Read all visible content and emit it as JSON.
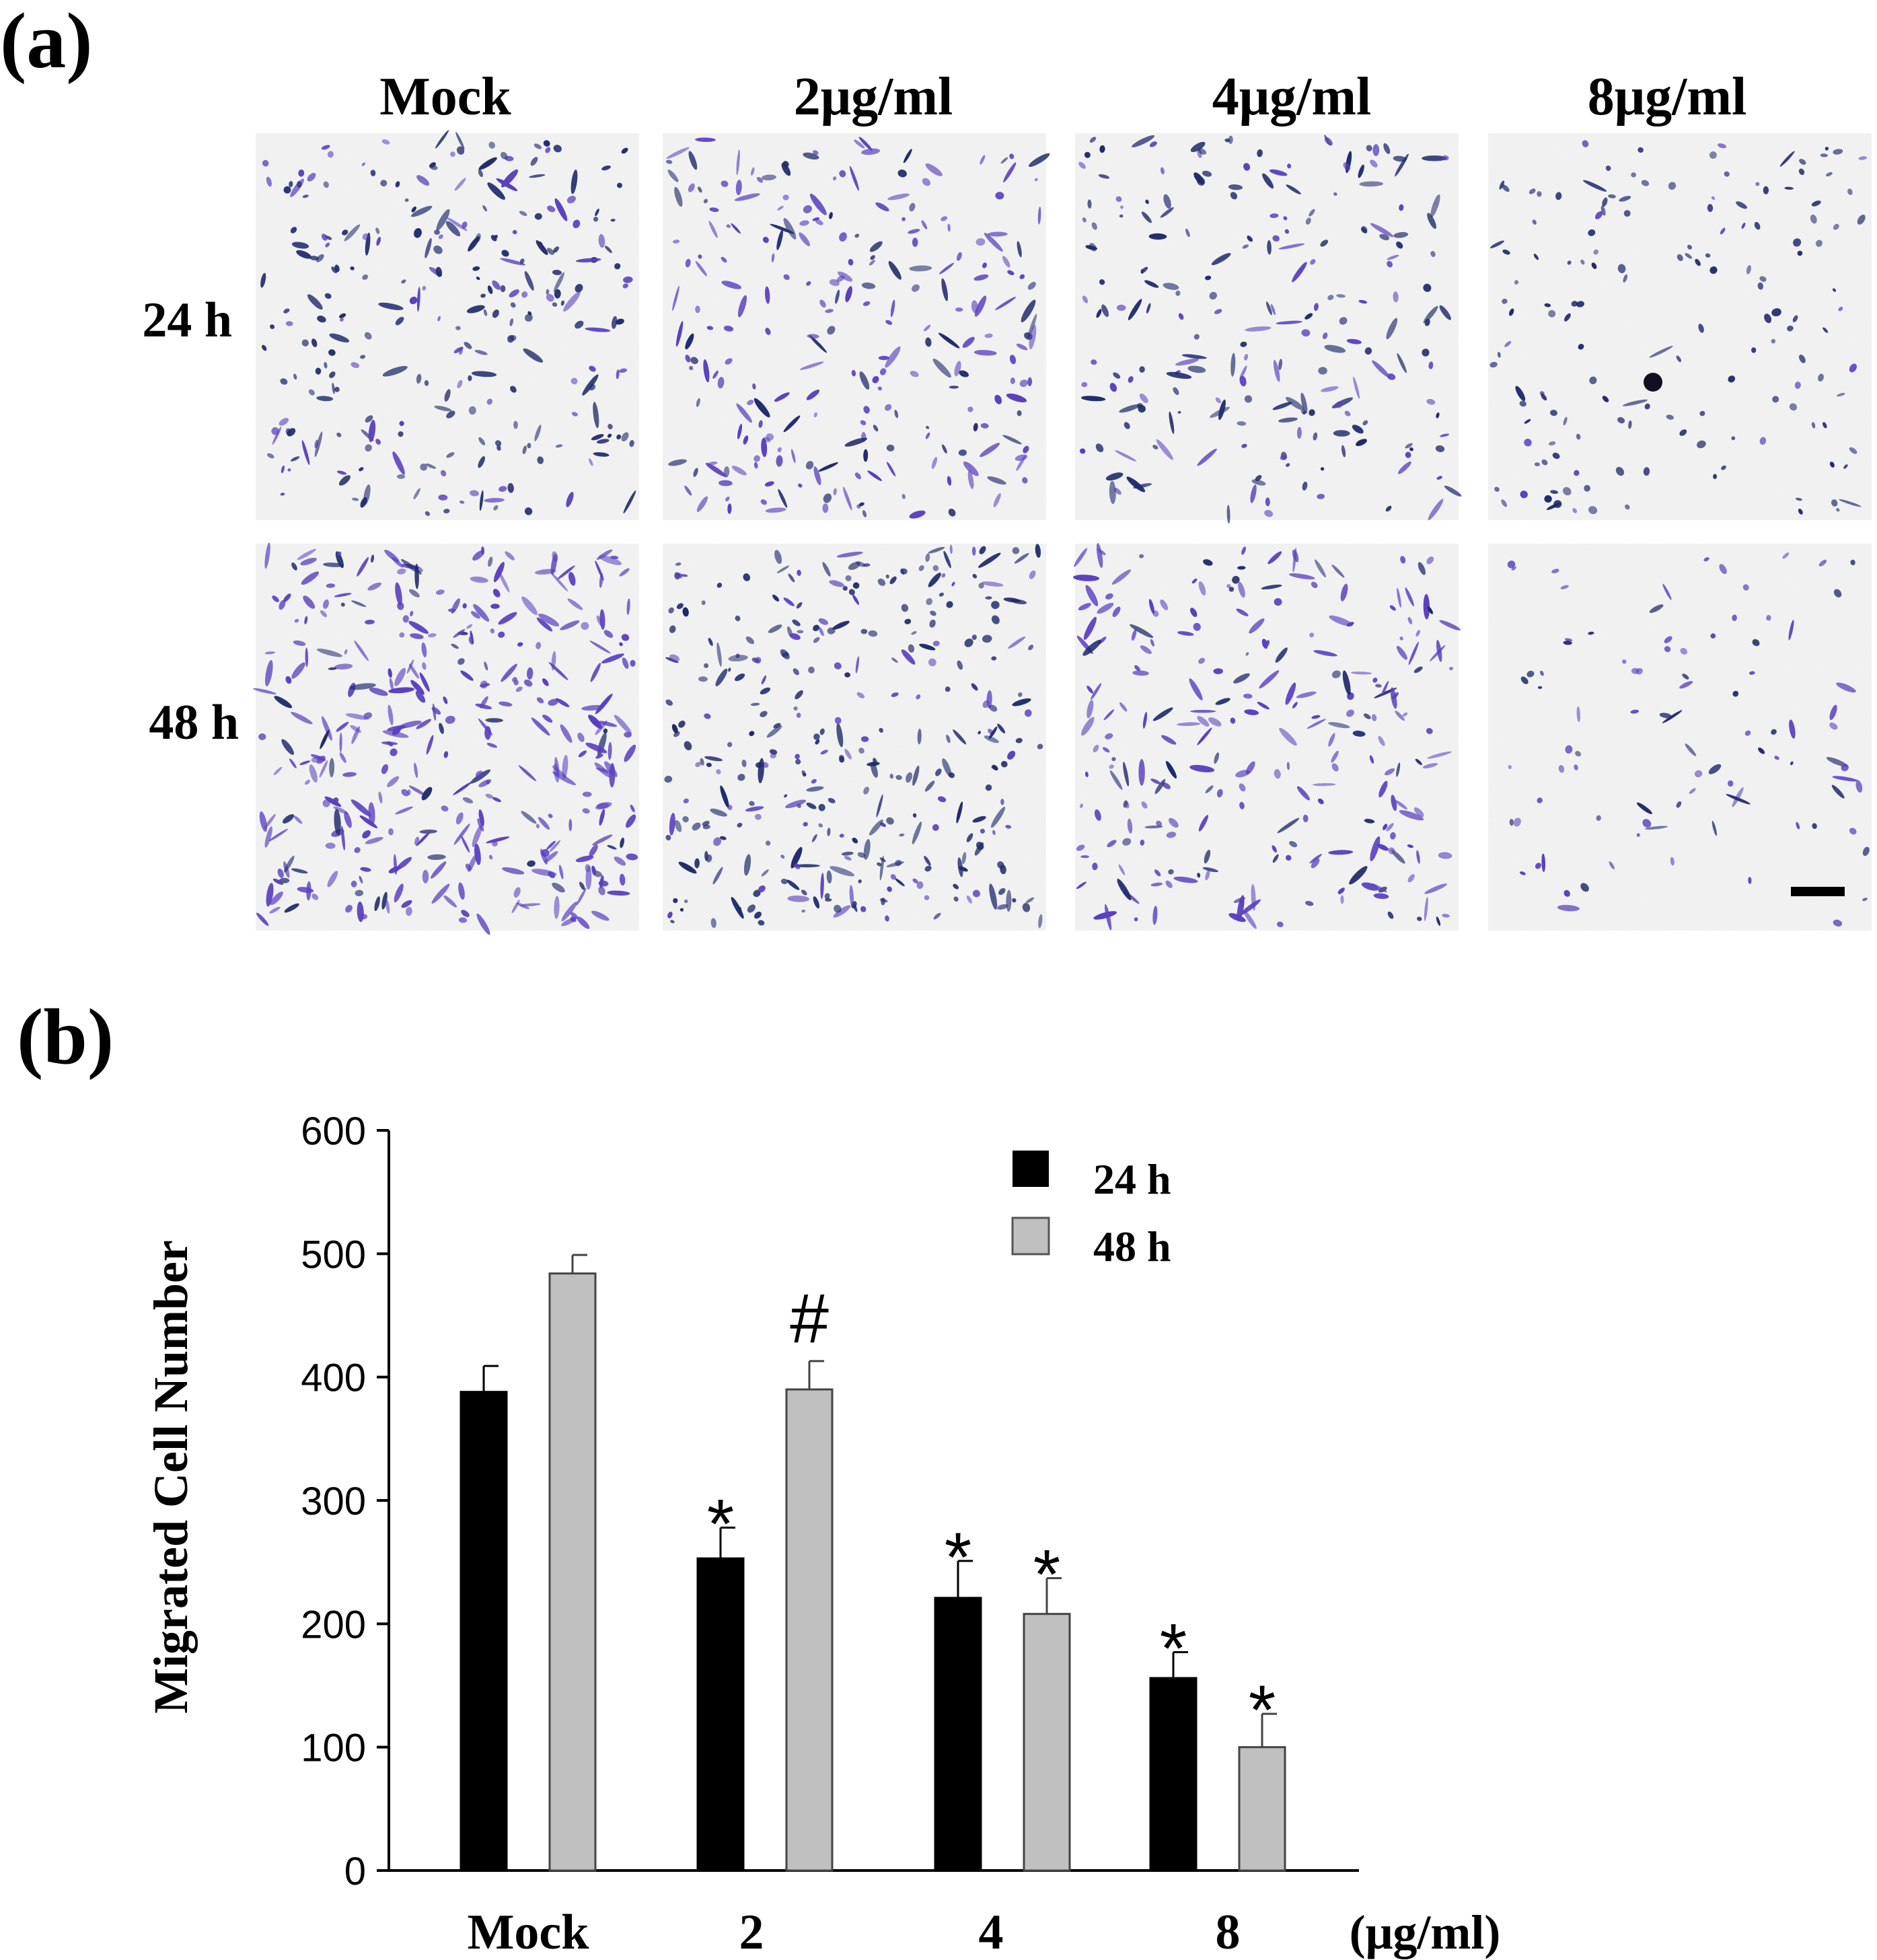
{
  "figure": {
    "panel_a_label": "(a)",
    "panel_b_label": "(b)"
  },
  "micrographs": {
    "columns": [
      "Mock",
      "2μg/ml",
      "4μg/ml",
      "8μg/ml"
    ],
    "rows": [
      "24 h",
      "48 h"
    ]
  },
  "colors": {
    "bar_24h": "#000000",
    "bar_48h": "#c0c0c0",
    "stain_dark": "#1f2a6b",
    "stain_violet": "#5a3fbf",
    "background": "#f4f4f4"
  },
  "chart_data": {
    "type": "bar",
    "categories": [
      "Mock",
      "2",
      "4",
      "8"
    ],
    "xunit": "(μg/ml)",
    "ylabel": "Migrated Cell Number",
    "ylim": [
      0,
      600
    ],
    "yticks": [
      0,
      100,
      200,
      300,
      400,
      500,
      600
    ],
    "legend_position": "top-right",
    "grid": false,
    "series": [
      {
        "name": "24 h",
        "values": [
          388,
          253,
          221,
          156
        ],
        "errors": [
          21,
          25,
          30,
          21
        ],
        "annotations": [
          "",
          "*",
          "*",
          "*"
        ]
      },
      {
        "name": "48 h",
        "values": [
          484,
          390,
          208,
          100
        ],
        "errors": [
          15,
          23,
          29,
          27
        ],
        "annotations": [
          "",
          "#",
          "*",
          "*"
        ]
      }
    ]
  }
}
